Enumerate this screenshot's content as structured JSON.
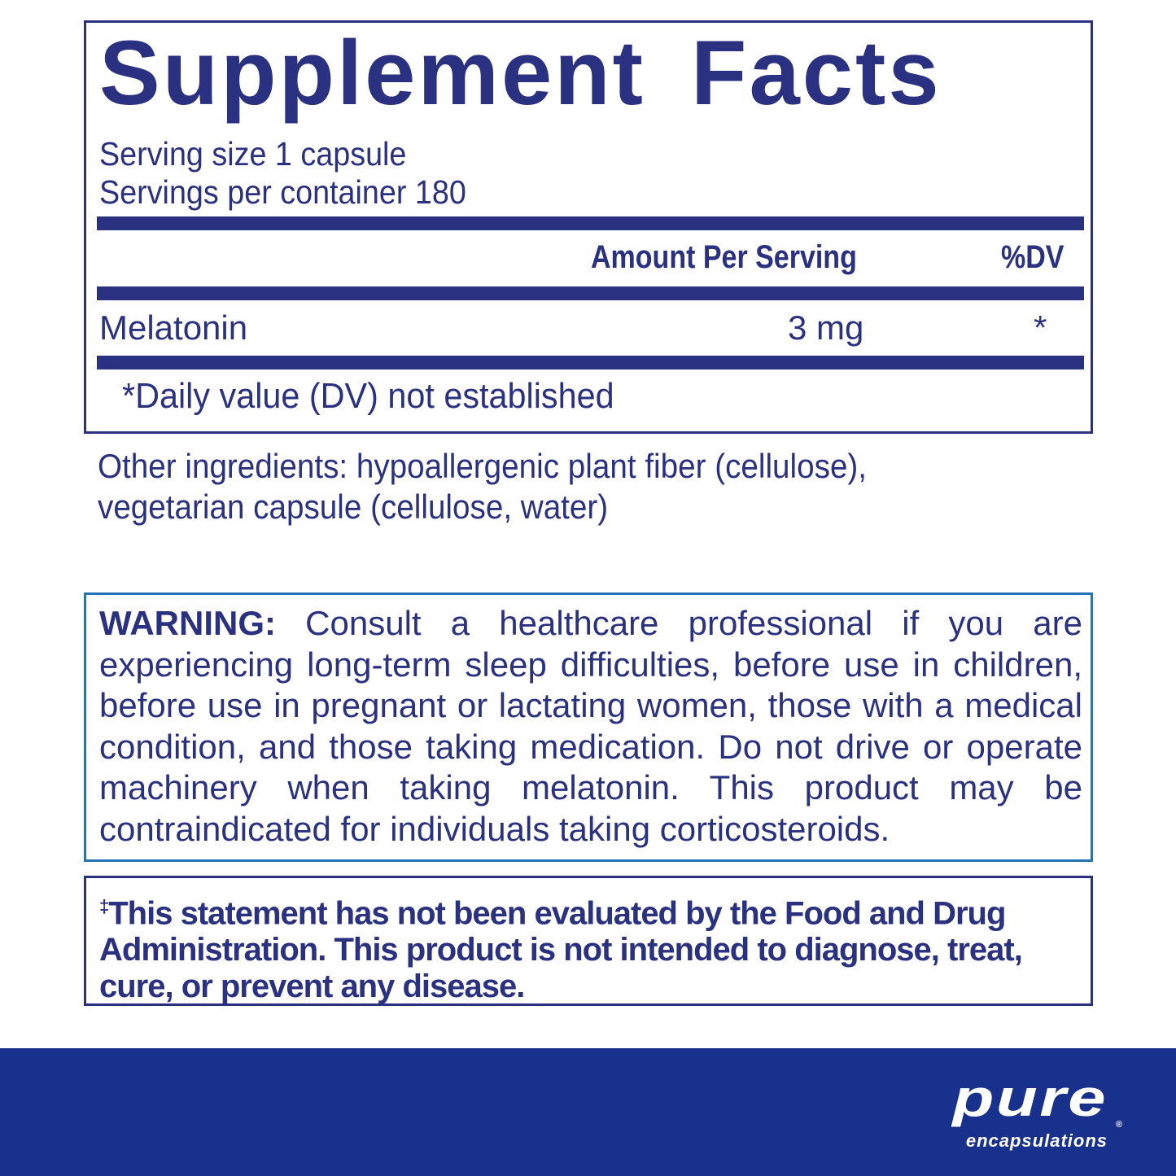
{
  "facts": {
    "title": "Supplement Facts",
    "serving_size": "Serving size  1 capsule",
    "servings_per_container": "Servings per container  180",
    "header_amount": "Amount Per Serving",
    "header_dv": "%DV",
    "ingredients": [
      {
        "name": "Melatonin",
        "amount": "3 mg",
        "dv": "*"
      }
    ],
    "footnote": "*Daily value (DV) not established"
  },
  "other_ingredients": {
    "line1": "Other ingredients: hypoallergenic plant fiber (cellulose),",
    "line2": "vegetarian capsule (cellulose, water)"
  },
  "warning": {
    "label": "WARNING:",
    "text": "Consult a healthcare professional if you are experiencing long-term sleep difficulties, before use in children, before use in pregnant or lactating women, those with a medical condition, and those taking medication. Do not drive or operate machinery when taking melatonin. This product may be contraindicated for individuals taking corticosteroids."
  },
  "fda": {
    "mark": "‡",
    "text": "This statement has not been evaluated by the Food and Drug Administration. This product is not intended to diagnose, treat, cure, or prevent any disease."
  },
  "brand": {
    "name": "pure",
    "sub": "encapsulations",
    "reg": "®"
  },
  "colors": {
    "navy": "#2a3180",
    "warning_border": "#2574b8",
    "band": "#17318c"
  }
}
